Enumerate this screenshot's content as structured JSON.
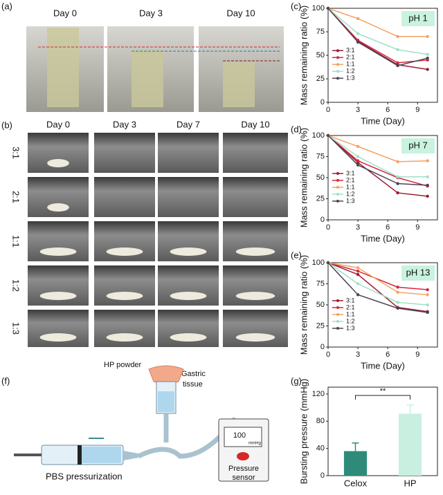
{
  "panel_labels": [
    "(a)",
    "(b)",
    "(c)",
    "(d)",
    "(e)",
    "(f)",
    "(g)"
  ],
  "panel_a": {
    "days": [
      "Day 0",
      "Day 3",
      "Day 10"
    ]
  },
  "panel_b": {
    "days": [
      "Day 0",
      "Day 3",
      "Day 7",
      "Day 10"
    ],
    "ratios": [
      "3:1",
      "2:1",
      "1:1",
      "1:2",
      "1:3"
    ]
  },
  "panel_f": {
    "hp_powder": "HP powder",
    "gastric_tissue": [
      "Gastric",
      "tissue"
    ],
    "pbs": "PBS pressurization",
    "display_value": "100",
    "display_unit": "mmHg",
    "sensor": [
      "Pressure",
      "sensor"
    ]
  },
  "chart_data": [
    {
      "type": "line",
      "annotation": "pH 1",
      "xlabel": "Time (Day)",
      "ylabel": "Mass remaining ratio (%)",
      "x": [
        0,
        3,
        7,
        10
      ],
      "xlim": [
        0,
        11
      ],
      "xticks": [
        0,
        3,
        6,
        9
      ],
      "ylim": [
        0,
        100
      ],
      "yticks": [
        0,
        25,
        50,
        75,
        100
      ],
      "series": [
        {
          "name": "3:1",
          "color": "#9b1b30",
          "values": [
            100,
            65,
            40,
            35
          ]
        },
        {
          "name": "2:1",
          "color": "#d7263d",
          "values": [
            100,
            66,
            42,
            45
          ]
        },
        {
          "name": "1:1",
          "color": "#f4a261",
          "values": [
            100,
            89,
            70,
            70
          ]
        },
        {
          "name": "1:2",
          "color": "#9ee0c8",
          "values": [
            100,
            73,
            56,
            51
          ]
        },
        {
          "name": "1:3",
          "color": "#4b4453",
          "values": [
            100,
            64,
            39,
            47
          ]
        }
      ]
    },
    {
      "type": "line",
      "annotation": "pH 7",
      "xlabel": "Time (Day)",
      "ylabel": "Mass remaining ratio (%)",
      "x": [
        0,
        3,
        7,
        10
      ],
      "xlim": [
        0,
        11
      ],
      "xticks": [
        0,
        3,
        6,
        9
      ],
      "ylim": [
        0,
        100
      ],
      "yticks": [
        0,
        25,
        50,
        75,
        100
      ],
      "series": [
        {
          "name": "3:1",
          "color": "#9b1b30",
          "values": [
            100,
            68,
            32,
            28
          ]
        },
        {
          "name": "2:1",
          "color": "#d7263d",
          "values": [
            100,
            70,
            50,
            40
          ]
        },
        {
          "name": "1:1",
          "color": "#f4a261",
          "values": [
            100,
            87,
            69,
            70
          ]
        },
        {
          "name": "1:2",
          "color": "#9ee0c8",
          "values": [
            100,
            75,
            51,
            51
          ]
        },
        {
          "name": "1:3",
          "color": "#4b4453",
          "values": [
            100,
            65,
            43,
            41
          ]
        }
      ]
    },
    {
      "type": "line",
      "annotation": "pH 13",
      "xlabel": "Time (Day)",
      "ylabel": "Mass remaining ratio (%)",
      "x": [
        0,
        3,
        7,
        10
      ],
      "xlim": [
        0,
        11
      ],
      "xticks": [
        0,
        3,
        6,
        9
      ],
      "ylim": [
        0,
        100
      ],
      "yticks": [
        0,
        25,
        50,
        75,
        100
      ],
      "series": [
        {
          "name": "3:1",
          "color": "#9b1b30",
          "values": [
            100,
            86,
            47,
            42
          ]
        },
        {
          "name": "2:1",
          "color": "#d7263d",
          "values": [
            100,
            90,
            71,
            68
          ]
        },
        {
          "name": "1:1",
          "color": "#f4a261",
          "values": [
            100,
            94,
            65,
            62
          ]
        },
        {
          "name": "1:2",
          "color": "#9ee0c8",
          "values": [
            100,
            75,
            53,
            50
          ]
        },
        {
          "name": "1:3",
          "color": "#4b4453",
          "values": [
            100,
            62,
            46,
            41
          ]
        }
      ]
    },
    {
      "type": "bar",
      "annotation": "**",
      "ylabel": "Bursting pressure (mmHg)",
      "categories": [
        "Celox",
        "HP"
      ],
      "values": [
        36,
        91
      ],
      "errors": [
        12,
        13
      ],
      "colors": [
        "#2e8b7a",
        "#c8efe0"
      ],
      "ylim": [
        0,
        130
      ],
      "yticks": [
        0,
        40,
        80,
        120
      ]
    }
  ]
}
